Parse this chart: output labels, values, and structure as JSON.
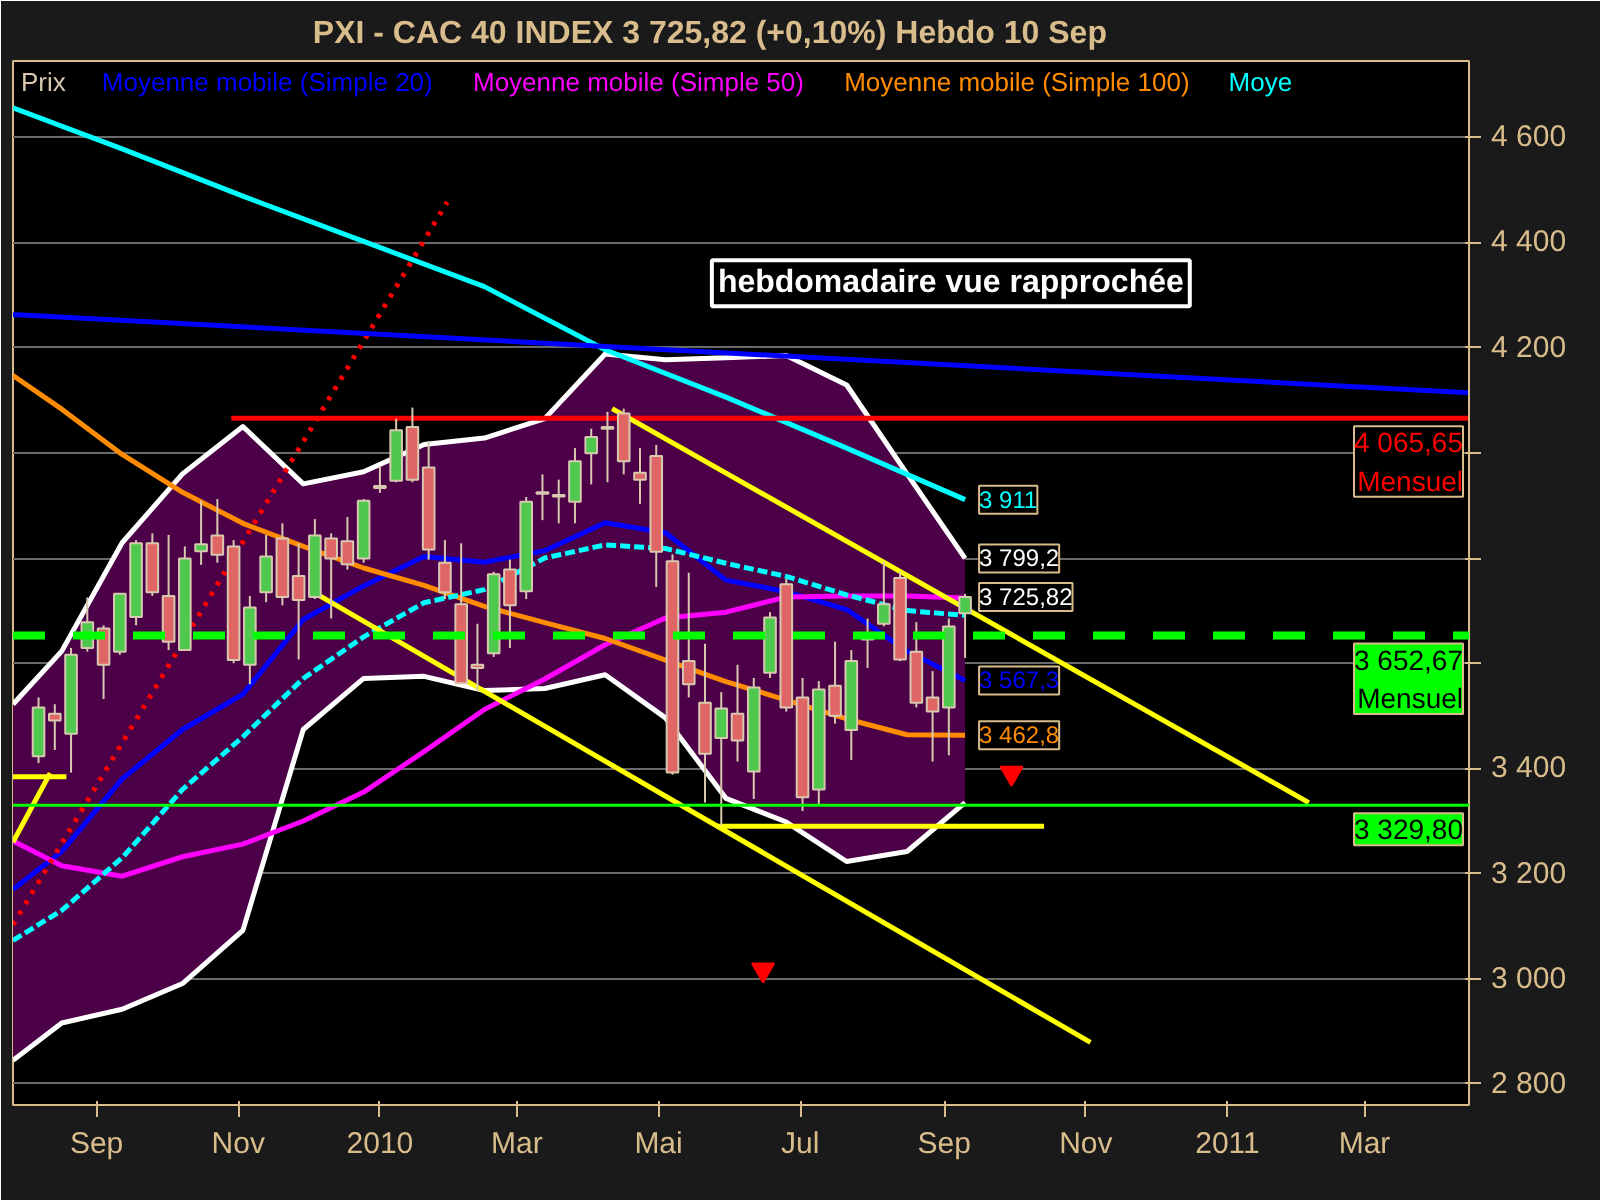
{
  "chart_data": {
    "type": "candlestick",
    "title": "PXI - CAC 40 INDEX    3 725,82 (+0,10%)    Hebdo  10 Sep",
    "annotations": [
      "hebdomadaire vue rapprochée",
      {
        "text": "3 799,2",
        "x": "2010-09-10",
        "y": 3799.2
      },
      {
        "text": "3 725,82",
        "x": "2010-09-10",
        "y": 3725.82
      }
    ],
    "xlim": [
      "2009-07-27",
      "2011-04-15"
    ],
    "ylim": [
      2760,
      4745
    ],
    "xticks": [
      {
        "value": "2009-09-01",
        "label": "Sep"
      },
      {
        "value": "2009-11-01",
        "label": "Nov"
      },
      {
        "value": "2010-01-01",
        "label": "2010"
      },
      {
        "value": "2010-03-01",
        "label": "Mar"
      },
      {
        "value": "2010-05-01",
        "label": "Mai"
      },
      {
        "value": "2010-07-01",
        "label": "Jul"
      },
      {
        "value": "2010-09-01",
        "label": "Sep"
      },
      {
        "value": "2010-11-01",
        "label": "Nov"
      },
      {
        "value": "2011-01-01",
        "label": "2011"
      },
      {
        "value": "2011-03-01",
        "label": "Mar"
      }
    ],
    "yticks": [
      {
        "value": 2800,
        "label": "2 800"
      },
      {
        "value": 3000,
        "label": "3 000"
      },
      {
        "value": 3200,
        "label": "3 200"
      },
      {
        "value": 3400,
        "label": "3 400"
      },
      {
        "value": 3600,
        "label": null
      },
      {
        "value": 3800,
        "label": null
      },
      {
        "value": 4000,
        "label": null
      },
      {
        "value": 4200,
        "label": "4 200"
      },
      {
        "value": 4400,
        "label": "4 400"
      },
      {
        "value": 4600,
        "label": "4 600"
      }
    ],
    "grid": "y",
    "legend": "top",
    "ref_lines": [
      {
        "axis": "y",
        "value": 3652.67,
        "label": "3 652,67\nMensuel",
        "color": "#00ff00",
        "line_style": "dashed"
      },
      {
        "axis": "y",
        "value": 3329.8,
        "label": "3 329,80",
        "color": "#00ff00",
        "line_style": "solid"
      }
    ],
    "series": [
      {
        "type": "line",
        "name": "Moyenne mobile (Simple 20)",
        "color": "#0000ff",
        "x": [
          "2009-07-27",
          "2009-08-17",
          "2009-09-12",
          "2009-10-08",
          "2009-11-03",
          "2009-11-29",
          "2009-12-25",
          "2010-01-20",
          "2010-02-15",
          "2010-03-13",
          "2010-04-08",
          "2010-05-04",
          "2010-05-30",
          "2010-06-25",
          "2010-07-21",
          "2010-08-16",
          "2010-09-10"
        ],
        "values": [
          3170,
          3242,
          3380,
          3474,
          3541,
          3683,
          3747,
          3803,
          3792,
          3814,
          3867,
          3848,
          3758,
          3736,
          3702,
          3623,
          3567.3
        ],
        "lower": [
          2845,
          2916,
          2942,
          2991,
          3092,
          3474,
          3571,
          3575,
          3548,
          3552,
          3578,
          3496,
          3343,
          3298,
          3223,
          3242,
          3335
        ],
        "upper": [
          3522,
          3623,
          3829,
          3960,
          4050,
          3941,
          3964,
          4016,
          4028,
          4065,
          4188,
          4177,
          4181,
          4185,
          4129,
          3960,
          3799.2
        ],
        "value_labels": [
          null,
          null,
          null,
          null,
          null,
          null,
          null,
          null,
          null,
          null,
          null,
          null,
          null,
          null,
          null,
          null,
          "3 567,3"
        ]
      },
      {
        "type": "line",
        "color": "#ffffff",
        "x": [
          "2009-07-27",
          "2009-08-17",
          "2009-09-12",
          "2009-10-08",
          "2009-11-03",
          "2009-11-29",
          "2009-12-25",
          "2010-01-20",
          "2010-02-15",
          "2010-03-13",
          "2010-04-08",
          "2010-05-04",
          "2010-05-30",
          "2010-06-25",
          "2010-07-21",
          "2010-08-16",
          "2010-09-10"
        ],
        "values": [
          3522,
          3623,
          3829,
          3960,
          4050,
          3941,
          3964,
          4016,
          4028,
          4065,
          4188,
          4177,
          4181,
          4185,
          4129,
          3960,
          3799.2
        ]
      },
      {
        "type": "line",
        "color": "#ffffff",
        "x": [
          "2009-07-27",
          "2009-08-17",
          "2009-09-12",
          "2009-10-08",
          "2009-11-03",
          "2009-11-29",
          "2009-12-25",
          "2010-01-20",
          "2010-02-15",
          "2010-03-13",
          "2010-04-08",
          "2010-05-04",
          "2010-05-30",
          "2010-06-25",
          "2010-07-21",
          "2010-08-16",
          "2010-09-10"
        ],
        "values": [
          2845,
          2916,
          2942,
          2991,
          3092,
          3474,
          3571,
          3575,
          3548,
          3552,
          3578,
          3496,
          3343,
          3298,
          3223,
          3242,
          3335
        ]
      },
      {
        "type": "line",
        "name": "Moyenne mobile (Simple 50)",
        "color": "#ff00ff",
        "x": [
          "2009-07-27",
          "2009-08-17",
          "2009-09-12",
          "2009-10-08",
          "2009-11-03",
          "2009-11-29",
          "2009-12-25",
          "2010-01-20",
          "2010-02-15",
          "2010-03-13",
          "2010-04-08",
          "2010-05-04",
          "2010-05-30",
          "2010-06-25",
          "2010-07-21",
          "2010-08-16",
          "2010-09-10"
        ],
        "values": [
          3262,
          3215,
          3195,
          3232,
          3256,
          3300,
          3355,
          3432,
          3512,
          3570,
          3635,
          3686,
          3697,
          3726,
          3728,
          3728,
          3724
        ]
      },
      {
        "type": "line",
        "name": "Moyenne mobile (Simple 100)",
        "color": "#ff8c00",
        "x": [
          "2009-07-27",
          "2009-08-17",
          "2009-09-12",
          "2009-10-08",
          "2009-11-03",
          "2009-11-29",
          "2009-12-25",
          "2010-01-20",
          "2010-02-15",
          "2010-03-13",
          "2010-04-08",
          "2010-05-04",
          "2010-05-30",
          "2010-06-25",
          "2010-07-21",
          "2010-08-16",
          "2010-09-10"
        ],
        "values": [
          4147,
          4083,
          3997,
          3925,
          3866,
          3822,
          3781,
          3748,
          3708,
          3677,
          3647,
          3606,
          3565,
          3530,
          3494,
          3464,
          3462.8
        ],
        "value_labels": [
          null,
          null,
          null,
          null,
          null,
          null,
          null,
          null,
          null,
          null,
          null,
          null,
          null,
          null,
          null,
          null,
          "3 462,8"
        ]
      },
      {
        "type": "line",
        "name": "Moye",
        "color": "#00ffff",
        "x": [
          "2009-07-27",
          "2009-09-12",
          "2009-11-03",
          "2009-12-25",
          "2010-02-15",
          "2010-04-08",
          "2010-05-30",
          "2010-07-21",
          "2010-09-10"
        ],
        "values": [
          4656,
          4578,
          4488,
          4402,
          4316,
          4196,
          4106,
          4009,
          3911
        ],
        "value_labels": [
          null,
          null,
          null,
          null,
          null,
          null,
          null,
          null,
          "3 911"
        ]
      },
      {
        "type": "line",
        "color": "#00ffff",
        "line_style": "dashed",
        "x": [
          "2009-07-27",
          "2009-08-17",
          "2009-09-12",
          "2009-10-08",
          "2009-11-03",
          "2009-11-29",
          "2009-12-25",
          "2010-01-20",
          "2010-02-15",
          "2010-03-13",
          "2010-04-08",
          "2010-05-04",
          "2010-05-30",
          "2010-06-25",
          "2010-07-21",
          "2010-08-16",
          "2010-09-10"
        ],
        "values": [
          3073,
          3130,
          3230,
          3360,
          3460,
          3571,
          3650,
          3715,
          3740,
          3800,
          3825,
          3818,
          3790,
          3765,
          3730,
          3700,
          3691
        ]
      },
      {
        "type": "line",
        "color": "#ff0000",
        "line_style": "dotted",
        "x": [
          "2009-07-27",
          "2010-01-30"
        ],
        "values": [
          3103,
          4477
        ]
      },
      {
        "type": "line",
        "color": "#0000ff",
        "x": [
          "2009-07-27",
          "2011-04-15"
        ],
        "values": [
          4263,
          4114
        ]
      },
      {
        "type": "line",
        "color": "#ff0000",
        "x": [
          "2009-10-29",
          "2011-04-15"
        ],
        "values": [
          4065.65,
          4065.65
        ],
        "value_labels": [
          null,
          "4 065,65\nMensuel"
        ]
      },
      {
        "type": "line",
        "color": "#ffff00",
        "x": [
          "2010-04-11",
          "2011-02-05"
        ],
        "values": [
          4084,
          3335
        ]
      },
      {
        "type": "line",
        "color": "#ffff00",
        "x": [
          "2009-12-03",
          "2010-11-03"
        ],
        "values": [
          3736,
          2879
        ]
      },
      {
        "type": "line",
        "color": "#ffff00",
        "x": [
          "2009-07-27",
          "2009-08-12"
        ],
        "values": [
          3260,
          3391
        ]
      },
      {
        "type": "line",
        "color": "#ffff00",
        "x": [
          "2009-07-27",
          "2009-08-19"
        ],
        "values": [
          3384,
          3384
        ]
      },
      {
        "type": "line",
        "color": "#ffff00",
        "x": [
          "2010-05-26",
          "2010-10-14"
        ],
        "values": [
          3290,
          3290
        ]
      },
      {
        "type": "scatter",
        "color": "#ff0000",
        "marker": "triangle",
        "x": [
          "2010-06-15",
          "2010-09-30"
        ],
        "values": [
          3017,
          3391
        ]
      },
      {
        "name": "Prix",
        "x": [
          "2009-08-07",
          "2009-08-14",
          "2009-08-21",
          "2009-08-28",
          "2009-09-04",
          "2009-09-11",
          "2009-09-18",
          "2009-09-25",
          "2009-10-02",
          "2009-10-09",
          "2009-10-16",
          "2009-10-23",
          "2009-10-30",
          "2009-11-06",
          "2009-11-13",
          "2009-11-20",
          "2009-11-27",
          "2009-12-04",
          "2009-12-11",
          "2009-12-18",
          "2009-12-25",
          "2010-01-01",
          "2010-01-08",
          "2010-01-15",
          "2010-01-22",
          "2010-01-29",
          "2010-02-05",
          "2010-02-12",
          "2010-02-19",
          "2010-02-26",
          "2010-03-05",
          "2010-03-12",
          "2010-03-19",
          "2010-03-26",
          "2010-04-02",
          "2010-04-09",
          "2010-04-16",
          "2010-04-23",
          "2010-04-30",
          "2010-05-07",
          "2010-05-14",
          "2010-05-21",
          "2010-05-28",
          "2010-06-04",
          "2010-06-11",
          "2010-06-18",
          "2010-06-25",
          "2010-07-02",
          "2010-07-09",
          "2010-07-16",
          "2010-07-23",
          "2010-07-30",
          "2010-08-06",
          "2010-08-13",
          "2010-08-20",
          "2010-08-27",
          "2010-09-03",
          "2010-09-10"
        ],
        "ohlc": [
          [
            3423,
            3535,
            3410,
            3516
          ],
          [
            3504,
            3522,
            3435,
            3491
          ],
          [
            3466,
            3629,
            3392,
            3616
          ],
          [
            3629,
            3725,
            3622,
            3678
          ],
          [
            3666,
            3672,
            3532,
            3597
          ],
          [
            3622,
            3732,
            3616,
            3732
          ],
          [
            3688,
            3834,
            3672,
            3828
          ],
          [
            3828,
            3847,
            3728,
            3735
          ],
          [
            3728,
            3844,
            3625,
            3641
          ],
          [
            3625,
            3822,
            3625,
            3799
          ],
          [
            3813,
            3909,
            3787,
            3826
          ],
          [
            3843,
            3912,
            3791,
            3806
          ],
          [
            3822,
            3834,
            3600,
            3606
          ],
          [
            3597,
            3728,
            3560,
            3706
          ],
          [
            3735,
            3844,
            3716,
            3803
          ],
          [
            3837,
            3866,
            3710,
            3726
          ],
          [
            3766,
            3828,
            3607,
            3720
          ],
          [
            3726,
            3874,
            3722,
            3843
          ],
          [
            3837,
            3847,
            3685,
            3799
          ],
          [
            3832,
            3878,
            3778,
            3788
          ],
          [
            3799,
            3912,
            3791,
            3909
          ],
          [
            3933,
            3974,
            3924,
            3937
          ],
          [
            3947,
            4065,
            3944,
            4043
          ],
          [
            4049,
            4086,
            3944,
            3949
          ],
          [
            3972,
            4022,
            3797,
            3816
          ],
          [
            3791,
            3834,
            3722,
            3735
          ],
          [
            3712,
            3828,
            3560,
            3562
          ],
          [
            3597,
            3675,
            3547,
            3591
          ],
          [
            3619,
            3774,
            3612,
            3769
          ],
          [
            3778,
            3797,
            3629,
            3710
          ],
          [
            3737,
            3916,
            3722,
            3907
          ],
          [
            3922,
            3959,
            3872,
            3925
          ],
          [
            3917,
            3949,
            3866,
            3920
          ],
          [
            3907,
            4009,
            3866,
            3984
          ],
          [
            3999,
            4046,
            3940,
            4030
          ],
          [
            4046,
            4078,
            3944,
            4049
          ],
          [
            4075,
            4084,
            3959,
            3984
          ],
          [
            3962,
            4009,
            3903,
            3949
          ],
          [
            3994,
            4015,
            3745,
            3812
          ],
          [
            3794,
            3807,
            3388,
            3392
          ],
          [
            3604,
            3772,
            3535,
            3560
          ],
          [
            3525,
            3637,
            3335,
            3428
          ],
          [
            3458,
            3545,
            3292,
            3514
          ],
          [
            3504,
            3597,
            3413,
            3453
          ],
          [
            3394,
            3572,
            3342,
            3554
          ],
          [
            3582,
            3697,
            3572,
            3687
          ],
          [
            3750,
            3760,
            3508,
            3516
          ],
          [
            3535,
            3572,
            3319,
            3345
          ],
          [
            3360,
            3566,
            3329,
            3550
          ],
          [
            3557,
            3641,
            3485,
            3500
          ],
          [
            3473,
            3625,
            3416,
            3604
          ],
          [
            3645,
            3685,
            3591,
            3655
          ],
          [
            3675,
            3793,
            3670,
            3712
          ],
          [
            3762,
            3774,
            3604,
            3607
          ],
          [
            3622,
            3678,
            3516,
            3525
          ],
          [
            3535,
            3585,
            3413,
            3508
          ],
          [
            3516,
            3685,
            3425,
            3670
          ],
          [
            3695,
            3732,
            3610,
            3725.82
          ]
        ],
        "colors": [
          "#4ec94e",
          "#e06666",
          "#4ec94e",
          "#4ec94e",
          "#e06666",
          "#4ec94e",
          "#4ec94e",
          "#e06666",
          "#e06666",
          "#4ec94e",
          "#4ec94e",
          "#e06666",
          "#e06666",
          "#4ec94e",
          "#4ec94e",
          "#e06666",
          "#e06666",
          "#4ec94e",
          "#e06666",
          "#e06666",
          "#4ec94e",
          "#4ec94e",
          "#4ec94e",
          "#e06666",
          "#e06666",
          "#e06666",
          "#e06666",
          "#e06666",
          "#4ec94e",
          "#e06666",
          "#4ec94e",
          "#4ec94e",
          "#4ec94e",
          "#4ec94e",
          "#4ec94e",
          "#4ec94e",
          "#e06666",
          "#e06666",
          "#e06666",
          "#e06666",
          "#e06666",
          "#e06666",
          "#4ec94e",
          "#e06666",
          "#4ec94e",
          "#4ec94e",
          "#e06666",
          "#e06666",
          "#4ec94e",
          "#e06666",
          "#4ec94e",
          "#4ec94e",
          "#4ec94e",
          "#e06666",
          "#e06666",
          "#e06666",
          "#4ec94e",
          "#4ec94e"
        ]
      }
    ]
  }
}
